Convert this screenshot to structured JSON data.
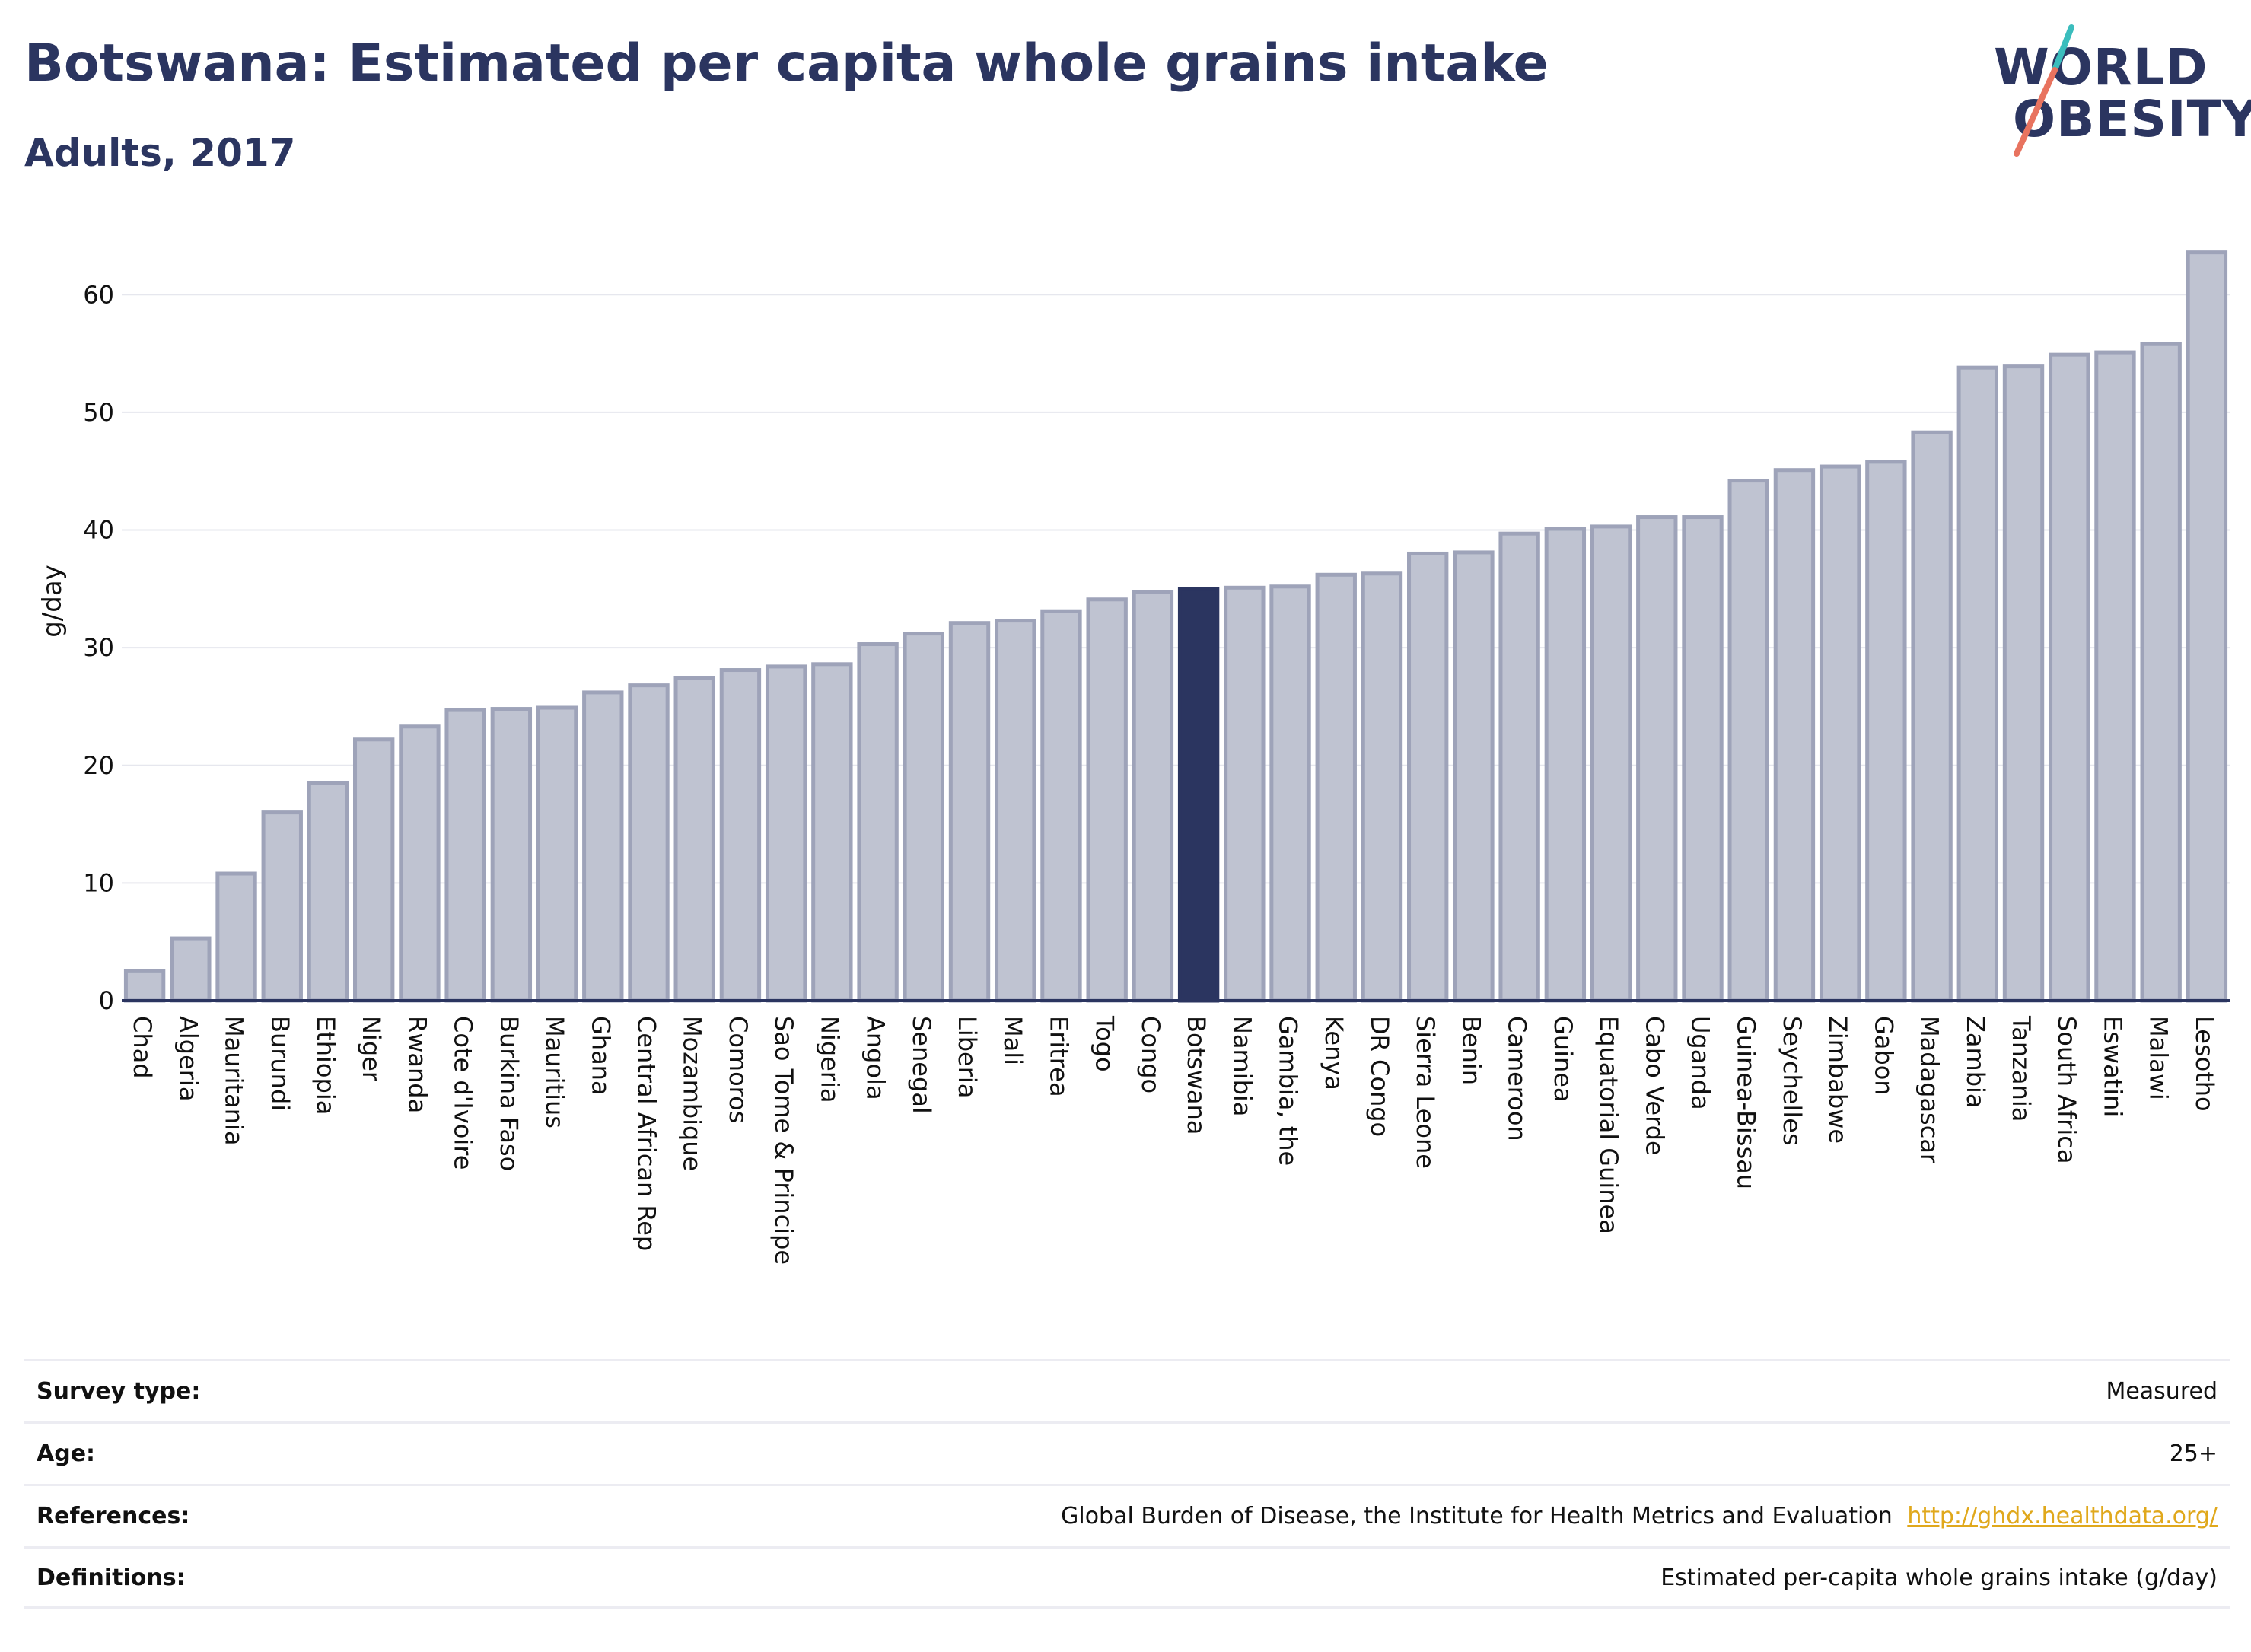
{
  "header": {
    "title": "Botswana: Estimated per capita whole grains intake",
    "subtitle": "Adults, 2017"
  },
  "logo": {
    "line1": "WORLD",
    "line2": "OBESITY",
    "colors": {
      "text": "#2b3560",
      "slash_top": "#3bbdbd",
      "slash_bottom": "#e8735f"
    }
  },
  "colors": {
    "bar": "#bfc3d1",
    "bar_stroke": "#9ea3b9",
    "highlight": "#2b3560",
    "grid": "#e6e7ee",
    "axis": "#2b3560"
  },
  "chart_data": {
    "type": "bar",
    "title": "Botswana: Estimated per capita whole grains intake",
    "subtitle": "Adults, 2017",
    "xlabel": "",
    "ylabel": "g/day",
    "ylim": [
      0,
      65
    ],
    "yticks": [
      0,
      10,
      20,
      30,
      40,
      50,
      60
    ],
    "grid": true,
    "legend": "none",
    "highlight_category": "Botswana",
    "categories": [
      "Chad",
      "Algeria",
      "Mauritania",
      "Burundi",
      "Ethiopia",
      "Niger",
      "Rwanda",
      "Cote d'Ivoire",
      "Burkina Faso",
      "Mauritius",
      "Ghana",
      "Central African Rep",
      "Mozambique",
      "Comoros",
      "Sao Tome & Principe",
      "Nigeria",
      "Angola",
      "Senegal",
      "Liberia",
      "Mali",
      "Eritrea",
      "Togo",
      "Congo",
      "Botswana",
      "Namibia",
      "Gambia, the",
      "Kenya",
      "DR Congo",
      "Sierra Leone",
      "Benin",
      "Cameroon",
      "Guinea",
      "Equatorial Guinea",
      "Cabo Verde",
      "Uganda",
      "Guinea-Bissau",
      "Seychelles",
      "Zimbabwe",
      "Gabon",
      "Madagascar",
      "Zambia",
      "Tanzania",
      "South Africa",
      "Eswatini",
      "Malawi",
      "Lesotho"
    ],
    "values": [
      2.5,
      5.3,
      10.8,
      16.0,
      18.5,
      22.2,
      23.3,
      24.7,
      24.8,
      24.9,
      26.2,
      26.8,
      27.4,
      28.1,
      28.4,
      28.6,
      30.3,
      31.2,
      32.1,
      32.3,
      33.1,
      34.1,
      34.7,
      35.0,
      35.1,
      35.2,
      36.2,
      36.3,
      38.0,
      38.1,
      39.7,
      40.1,
      40.3,
      41.1,
      41.1,
      44.2,
      45.1,
      45.4,
      45.8,
      48.3,
      53.8,
      53.9,
      54.9,
      55.1,
      55.8,
      63.6
    ]
  },
  "meta": {
    "survey_type": {
      "label": "Survey type:",
      "value": "Measured"
    },
    "age": {
      "label": "Age:",
      "value": "25+"
    },
    "references": {
      "label": "References:",
      "value": "Global Burden of Disease, the Institute for Health Metrics and Evaluation",
      "link": "http://ghdx.healthdata.org/"
    },
    "definitions": {
      "label": "Definitions:",
      "value": "Estimated per-capita whole grains intake (g/day)"
    }
  }
}
